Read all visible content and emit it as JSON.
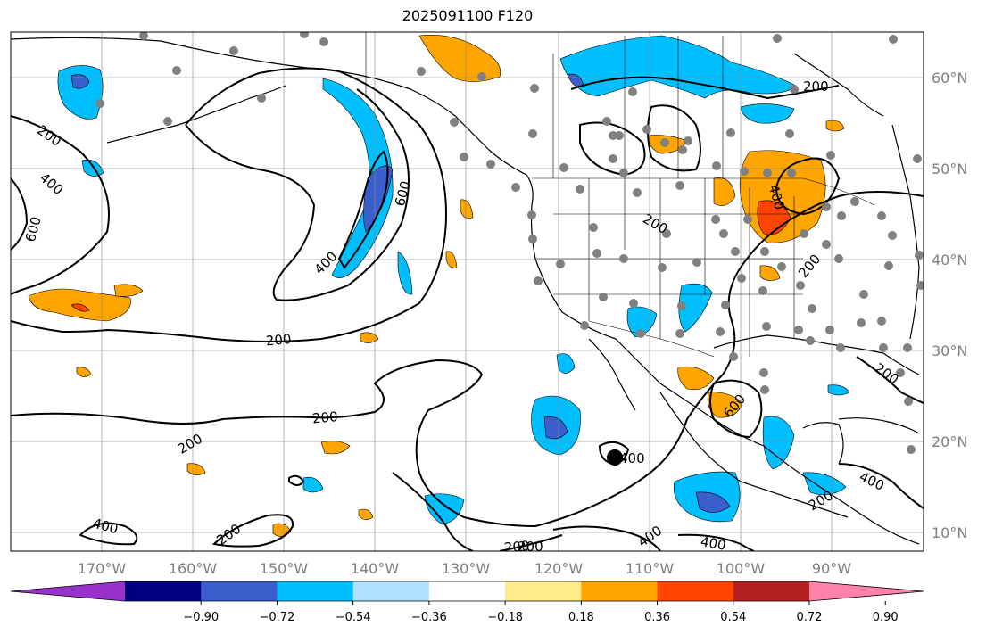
{
  "title": "2025091100 F120",
  "longitude_labels": [
    "170°W",
    "160°W",
    "150°W",
    "140°W",
    "130°W",
    "120°W",
    "110°W",
    "100°W",
    "90°W"
  ],
  "latitude_labels": [
    "60°N",
    "50°N",
    "40°N",
    "30°N",
    "20°N",
    "10°N"
  ],
  "contour_labels": [
    "200",
    "400",
    "600",
    "400",
    "200",
    "200",
    "200",
    "400",
    "200",
    "600",
    "200",
    "200",
    "400",
    "200",
    "200",
    "400",
    "600",
    "200",
    "400",
    "400",
    "200",
    "200",
    "400"
  ],
  "colorbar": {
    "tick_labels": [
      "−0.90",
      "−0.72",
      "−0.54",
      "−0.36",
      "−0.18",
      "0.18",
      "0.36",
      "0.54",
      "0.72",
      "0.90"
    ],
    "colors": [
      "#9932CC",
      "#000080",
      "#3A5FCD",
      "#00BFFF",
      "#B0E2FF",
      "#FFFFFF",
      "#FFEC8B",
      "#FFA500",
      "#FF4500",
      "#B22222",
      "#FF82AB"
    ]
  },
  "colors": {
    "grid": "#888888",
    "coast": "#000000",
    "contour": "#000000",
    "station": "#808080"
  }
}
